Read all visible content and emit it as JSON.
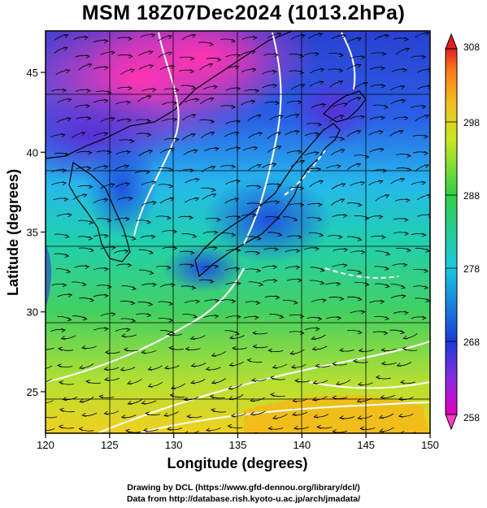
{
  "title": "MSM 18Z07Dec2024 (1013.2hPa)",
  "credits": {
    "line1": "Drawing by DCL (https://www.gfd-dennou.org/library/dcl/)",
    "line2": "Data from http://database.rish.kyoto-u.ac.jp/arch/jmadata/"
  },
  "chart_data": {
    "type": "heatmap",
    "title": "MSM 18Z07Dec2024 (1013.2hPa)",
    "xlabel": "Longitude (degrees)",
    "ylabel": "Latitude  (degrees)",
    "xlim": [
      120,
      150
    ],
    "ylim": [
      22.4,
      47.6
    ],
    "x_ticks": [
      120,
      125,
      130,
      135,
      140,
      145,
      150
    ],
    "y_ticks": [
      25,
      30,
      35,
      40,
      45
    ],
    "grid": true,
    "colorbar": {
      "min": 258,
      "max": 308,
      "ticks": [
        258,
        268,
        278,
        288,
        298,
        308
      ],
      "placement": "right"
    },
    "colors": {
      "min": "#e000c0",
      "purple": "#8a2be2",
      "blue": "#1a3bd8",
      "cyan": "#18c8e0",
      "green": "#30d048",
      "yellow": "#e8e820",
      "orange": "#ff8c1a",
      "max": "#e02020"
    },
    "overlays": [
      "wind streamlines",
      "white contour lines",
      "coastlines"
    ]
  }
}
